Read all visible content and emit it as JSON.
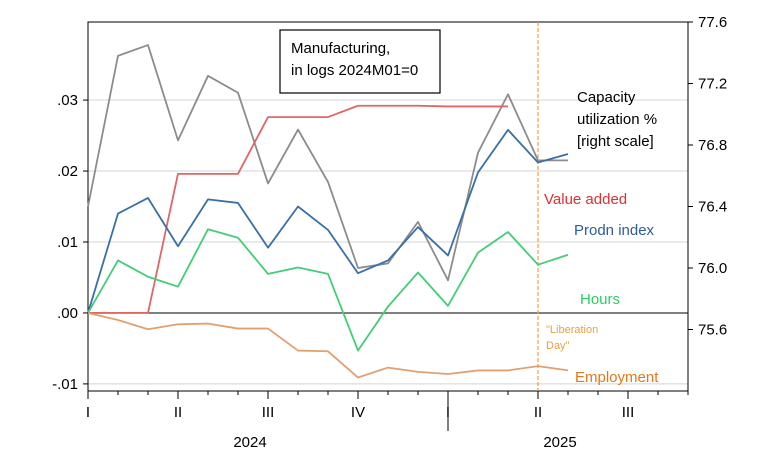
{
  "chart_data": {
    "type": "line",
    "title_box": [
      "Manufacturing,",
      "in logs 2024M01=0"
    ],
    "x": [
      "2024M01",
      "2024M02",
      "2024M03",
      "2024M04",
      "2024M05",
      "2024M06",
      "2024M07",
      "2024M08",
      "2024M09",
      "2024M10",
      "2024M11",
      "2024M12",
      "2025M01",
      "2025M02",
      "2025M03",
      "2025M04",
      "2025M05"
    ],
    "x_ticks": [
      "I",
      "II",
      "III",
      "IV",
      "I",
      "II",
      "III"
    ],
    "year_labels": [
      "2024",
      "2025"
    ],
    "left_axis": {
      "ylim": [
        -0.011,
        0.041
      ],
      "ticks": [
        ".03",
        ".02",
        ".01",
        ".00",
        "-.01"
      ]
    },
    "right_axis": {
      "ylim": [
        75.2,
        77.6
      ],
      "ticks": [
        "77.6",
        "77.2",
        "76.8",
        "76.4",
        "76.0",
        "75.6"
      ]
    },
    "series": [
      {
        "name": "Capacity utilization % [right scale]",
        "label_lines": [
          "Capacity",
          "utilization %",
          "[right scale]"
        ],
        "axis": "right",
        "color": "#8c8c8c",
        "values": [
          76.4,
          77.38,
          77.45,
          76.83,
          77.25,
          77.14,
          76.55,
          76.9,
          76.56,
          76.0,
          76.03,
          76.3,
          75.92,
          76.75,
          77.13,
          76.7,
          76.7
        ]
      },
      {
        "name": "Value added",
        "axis": "left",
        "color": "#e06666",
        "values": [
          0.0,
          0.0,
          0.0,
          0.0196,
          0.0196,
          0.0196,
          0.0276,
          0.0276,
          0.0276,
          0.0292,
          0.0292,
          0.0292,
          0.0291,
          0.0291,
          0.0291,
          null,
          null
        ]
      },
      {
        "name": "Prodn index",
        "axis": "left",
        "color": "#3a6fa8",
        "values": [
          0.0,
          0.014,
          0.0162,
          0.0094,
          0.016,
          0.0155,
          0.0092,
          0.015,
          0.0117,
          0.0056,
          0.0074,
          0.0121,
          0.0081,
          0.0198,
          0.0258,
          0.0212,
          0.0224
        ]
      },
      {
        "name": "Hours",
        "axis": "left",
        "color": "#44cc77",
        "values": [
          0.0,
          0.0074,
          0.0051,
          0.0037,
          0.0118,
          0.0106,
          0.0055,
          0.0064,
          0.0055,
          -0.0053,
          0.0009,
          0.0057,
          0.001,
          0.0085,
          0.0114,
          0.0068,
          0.0082
        ]
      },
      {
        "name": "Employment",
        "axis": "left",
        "color": "#e0a070",
        "values": [
          0.0,
          -0.001,
          -0.0023,
          -0.0016,
          -0.0015,
          -0.0022,
          -0.0022,
          -0.0053,
          -0.0054,
          -0.0091,
          -0.0077,
          -0.0083,
          -0.0086,
          -0.0081,
          -0.0081,
          -0.0075,
          -0.0081
        ]
      }
    ],
    "annotation": {
      "lines": [
        "\"Liberation",
        "Day\""
      ],
      "at": "2025M04",
      "color": "#e8a040"
    }
  }
}
